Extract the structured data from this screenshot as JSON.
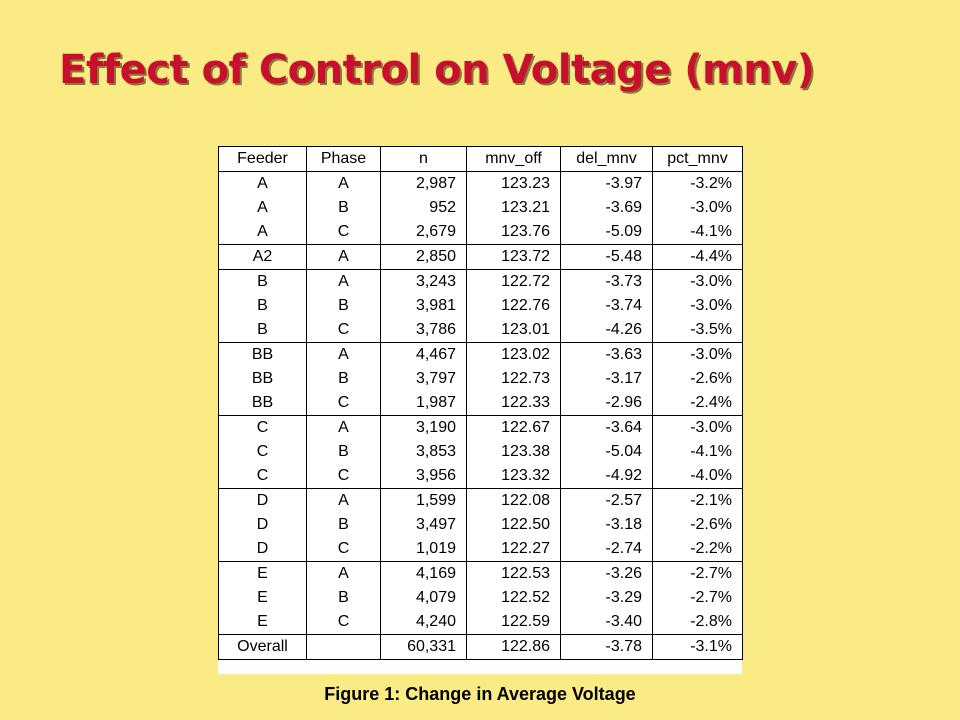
{
  "slide": {
    "title": "Effect of Control on Voltage (mnv)",
    "caption": "Figure 1: Change in Average Voltage"
  },
  "table": {
    "headers": [
      "Feeder",
      "Phase",
      "n",
      "mnv_off",
      "del_mnv",
      "pct_mnv"
    ],
    "rows": [
      [
        "A",
        "A",
        "2,987",
        "123.23",
        "-3.97",
        "-3.2%"
      ],
      [
        "A",
        "B",
        "952",
        "123.21",
        "-3.69",
        "-3.0%"
      ],
      [
        "A",
        "C",
        "2,679",
        "123.76",
        "-5.09",
        "-4.1%"
      ],
      [
        "A2",
        "A",
        "2,850",
        "123.72",
        "-5.48",
        "-4.4%"
      ],
      [
        "B",
        "A",
        "3,243",
        "122.72",
        "-3.73",
        "-3.0%"
      ],
      [
        "B",
        "B",
        "3,981",
        "122.76",
        "-3.74",
        "-3.0%"
      ],
      [
        "B",
        "C",
        "3,786",
        "123.01",
        "-4.26",
        "-3.5%"
      ],
      [
        "BB",
        "A",
        "4,467",
        "123.02",
        "-3.63",
        "-3.0%"
      ],
      [
        "BB",
        "B",
        "3,797",
        "122.73",
        "-3.17",
        "-2.6%"
      ],
      [
        "BB",
        "C",
        "1,987",
        "122.33",
        "-2.96",
        "-2.4%"
      ],
      [
        "C",
        "A",
        "3,190",
        "122.67",
        "-3.64",
        "-3.0%"
      ],
      [
        "C",
        "B",
        "3,853",
        "123.38",
        "-5.04",
        "-4.1%"
      ],
      [
        "C",
        "C",
        "3,956",
        "123.32",
        "-4.92",
        "-4.0%"
      ],
      [
        "D",
        "A",
        "1,599",
        "122.08",
        "-2.57",
        "-2.1%"
      ],
      [
        "D",
        "B",
        "3,497",
        "122.50",
        "-3.18",
        "-2.6%"
      ],
      [
        "D",
        "C",
        "1,019",
        "122.27",
        "-2.74",
        "-2.2%"
      ],
      [
        "E",
        "A",
        "4,169",
        "122.53",
        "-3.26",
        "-2.7%"
      ],
      [
        "E",
        "B",
        "4,079",
        "122.52",
        "-3.29",
        "-2.7%"
      ],
      [
        "E",
        "C",
        "4,240",
        "122.59",
        "-3.40",
        "-2.8%"
      ],
      [
        "Overall",
        "",
        "60,331",
        "122.86",
        "-3.78",
        "-3.1%"
      ]
    ]
  }
}
